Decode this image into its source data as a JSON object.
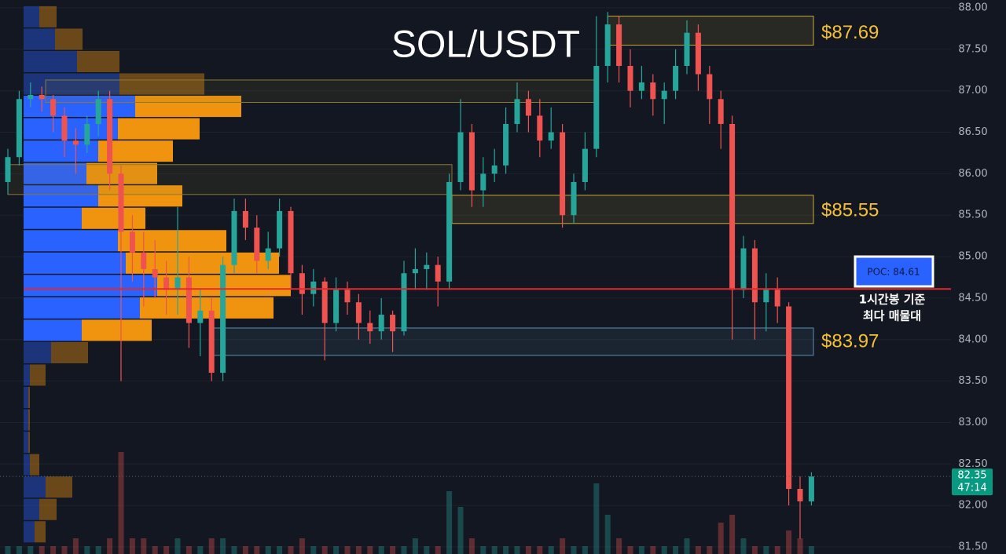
{
  "chart_data": {
    "type": "candlestick",
    "title": "SOL/USDT",
    "up_color": "#26a69a",
    "down_color": "#ef5350",
    "ylim": [
      81.5,
      88.0
    ],
    "yticks": [
      {
        "value": 88.0,
        "label": "88.00"
      },
      {
        "value": 87.5,
        "label": "87.50"
      },
      {
        "value": 87.0,
        "label": "87.00"
      },
      {
        "value": 86.5,
        "label": "86.50"
      },
      {
        "value": 86.0,
        "label": "86.00"
      },
      {
        "value": 85.5,
        "label": "85.50"
      },
      {
        "value": 85.0,
        "label": "85.00"
      },
      {
        "value": 84.5,
        "label": "84.50"
      },
      {
        "value": 84.0,
        "label": "84.00"
      },
      {
        "value": 83.5,
        "label": "83.50"
      },
      {
        "value": 83.0,
        "label": "83.00"
      },
      {
        "value": 82.5,
        "label": "82.50"
      },
      {
        "value": 82.0,
        "label": "82.00"
      },
      {
        "value": 81.5,
        "label": "81.50"
      }
    ],
    "grid": true,
    "ohlc": [
      [
        85.9,
        86.3,
        85.75,
        86.2
      ],
      [
        86.2,
        87.0,
        86.1,
        86.9
      ],
      [
        86.9,
        87.1,
        86.8,
        86.95
      ],
      [
        86.95,
        87.05,
        86.75,
        86.9
      ],
      [
        86.9,
        86.95,
        86.5,
        86.7
      ],
      [
        86.7,
        86.8,
        86.2,
        86.4
      ],
      [
        86.4,
        86.55,
        86.0,
        86.35
      ],
      [
        86.35,
        86.7,
        86.25,
        86.6
      ],
      [
        86.6,
        87.0,
        86.45,
        86.9
      ],
      [
        86.9,
        87.0,
        85.8,
        86.0
      ],
      [
        86.0,
        86.1,
        83.5,
        85.3
      ],
      [
        85.3,
        85.5,
        84.7,
        85.05
      ],
      [
        85.05,
        85.3,
        84.4,
        84.85
      ],
      [
        84.85,
        85.2,
        84.5,
        84.75
      ],
      [
        84.75,
        84.95,
        84.3,
        84.6
      ],
      [
        84.6,
        85.6,
        84.3,
        84.75
      ],
      [
        84.75,
        85.0,
        83.9,
        84.2
      ],
      [
        84.2,
        84.6,
        83.8,
        84.35
      ],
      [
        84.35,
        84.5,
        83.5,
        83.6
      ],
      [
        83.6,
        85.0,
        83.5,
        84.9
      ],
      [
        84.9,
        85.7,
        84.8,
        85.55
      ],
      [
        85.55,
        85.7,
        85.2,
        85.35
      ],
      [
        85.35,
        85.5,
        84.8,
        84.95
      ],
      [
        84.95,
        85.3,
        84.85,
        85.1
      ],
      [
        85.1,
        85.7,
        85.0,
        85.55
      ],
      [
        85.55,
        85.6,
        84.6,
        84.8
      ],
      [
        84.8,
        84.9,
        84.3,
        84.55
      ],
      [
        84.55,
        84.85,
        84.4,
        84.7
      ],
      [
        84.7,
        84.75,
        83.75,
        84.2
      ],
      [
        84.2,
        84.75,
        84.1,
        84.6
      ],
      [
        84.6,
        84.7,
        84.3,
        84.45
      ],
      [
        84.45,
        84.55,
        84.0,
        84.2
      ],
      [
        84.2,
        84.35,
        83.95,
        84.1
      ],
      [
        84.1,
        84.5,
        84.0,
        84.3
      ],
      [
        84.3,
        84.35,
        83.85,
        84.1
      ],
      [
        84.1,
        84.95,
        84.05,
        84.8
      ],
      [
        84.8,
        85.1,
        84.6,
        84.85
      ],
      [
        84.85,
        85.05,
        84.6,
        84.9
      ],
      [
        84.9,
        85.0,
        84.4,
        84.7
      ],
      [
        84.7,
        86.0,
        84.6,
        85.9
      ],
      [
        85.9,
        86.9,
        85.8,
        86.5
      ],
      [
        86.5,
        86.6,
        85.6,
        85.8
      ],
      [
        85.8,
        86.2,
        85.6,
        86.0
      ],
      [
        86.0,
        86.3,
        85.9,
        86.1
      ],
      [
        86.1,
        86.8,
        86.0,
        86.6
      ],
      [
        86.6,
        87.1,
        86.5,
        86.9
      ],
      [
        86.9,
        87.0,
        86.5,
        86.7
      ],
      [
        86.7,
        86.9,
        86.2,
        86.4
      ],
      [
        86.4,
        86.8,
        86.3,
        86.5
      ],
      [
        86.5,
        86.6,
        85.35,
        85.5
      ],
      [
        85.5,
        86.0,
        85.4,
        85.9
      ],
      [
        85.9,
        86.5,
        85.8,
        86.3
      ],
      [
        86.3,
        87.9,
        86.2,
        87.3
      ],
      [
        87.3,
        87.95,
        87.1,
        87.8
      ],
      [
        87.8,
        87.9,
        87.1,
        87.3
      ],
      [
        87.3,
        87.5,
        86.8,
        87.0
      ],
      [
        87.0,
        87.3,
        86.9,
        87.1
      ],
      [
        87.1,
        87.2,
        86.7,
        86.9
      ],
      [
        86.9,
        87.1,
        86.6,
        87.0
      ],
      [
        87.0,
        87.5,
        86.9,
        87.3
      ],
      [
        87.3,
        87.85,
        87.2,
        87.7
      ],
      [
        87.7,
        87.8,
        87.0,
        87.2
      ],
      [
        87.2,
        87.3,
        86.6,
        86.9
      ],
      [
        86.9,
        87.0,
        86.3,
        86.6
      ],
      [
        86.6,
        86.7,
        84.0,
        84.6
      ],
      [
        84.6,
        85.25,
        84.5,
        85.1
      ],
      [
        85.1,
        85.2,
        84.0,
        84.45
      ],
      [
        84.45,
        84.8,
        84.1,
        84.6
      ],
      [
        84.6,
        84.75,
        84.2,
        84.4
      ],
      [
        84.4,
        84.45,
        82.0,
        82.2
      ],
      [
        82.2,
        82.35,
        81.6,
        82.05
      ],
      [
        82.05,
        82.4,
        82.0,
        82.35
      ]
    ],
    "volume": [
      1,
      1,
      1,
      1,
      1,
      1,
      2,
      1,
      1,
      2,
      13,
      2,
      2,
      1,
      1,
      2,
      1,
      1,
      2,
      2,
      1,
      1,
      1,
      1,
      1,
      1,
      2,
      1,
      1,
      1,
      1,
      1,
      1,
      1,
      1,
      1,
      2,
      1,
      1,
      8,
      6,
      2,
      1,
      1,
      1,
      1,
      1,
      1,
      1,
      2,
      1,
      1,
      9,
      5,
      2,
      1,
      1,
      1,
      1,
      1,
      2,
      1,
      1,
      4,
      5,
      2,
      1,
      1,
      1,
      3,
      2,
      1
    ],
    "last_price": 82.35,
    "countdown": "47:14",
    "zones": [
      {
        "top": 87.9,
        "bottom": 87.55,
        "value": 87.69,
        "label": "$87.69",
        "color": "#c9a93a"
      },
      {
        "top": 87.13,
        "bottom": 86.86,
        "color": "#8a7a30"
      },
      {
        "top": 86.11,
        "bottom": 85.75,
        "color": "#8a7a30"
      },
      {
        "top": 85.74,
        "bottom": 85.4,
        "value": 85.55,
        "label": "$85.55",
        "color": "#c9a93a"
      },
      {
        "top": 84.14,
        "bottom": 83.81,
        "value": 83.97,
        "label": "$83.97",
        "color": "#5b8fb0"
      }
    ],
    "zone_label_color": "#f5c033",
    "poc": {
      "value": 84.61,
      "label": "POC: 84.61",
      "note": [
        "1시간봉 기준",
        "최다 매물대"
      ],
      "line_color": "#e5282b"
    },
    "volume_profile": {
      "bins": [
        88.02,
        87.75,
        87.48,
        87.21,
        86.94,
        86.67,
        86.4,
        86.13,
        85.86,
        85.59,
        85.32,
        85.05,
        84.78,
        84.51,
        84.24,
        83.97,
        83.7,
        83.43,
        83.16,
        82.89,
        82.62,
        82.35,
        82.08,
        81.81,
        81.54
      ],
      "buy": [
        20,
        40,
        68,
        122,
        142,
        120,
        95,
        80,
        95,
        74,
        120,
        130,
        170,
        148,
        74,
        35,
        8,
        6,
        6,
        6,
        8,
        28,
        20,
        14
      ],
      "sell": [
        22,
        35,
        54,
        108,
        135,
        104,
        95,
        90,
        107,
        81,
        138,
        195,
        170,
        170,
        89,
        47,
        20,
        2,
        2,
        2,
        12,
        34,
        22,
        14
      ],
      "buy_color": "#2962ff",
      "sell_color": "#f0940f",
      "value_area": [
        83.97,
        86.94
      ]
    }
  }
}
